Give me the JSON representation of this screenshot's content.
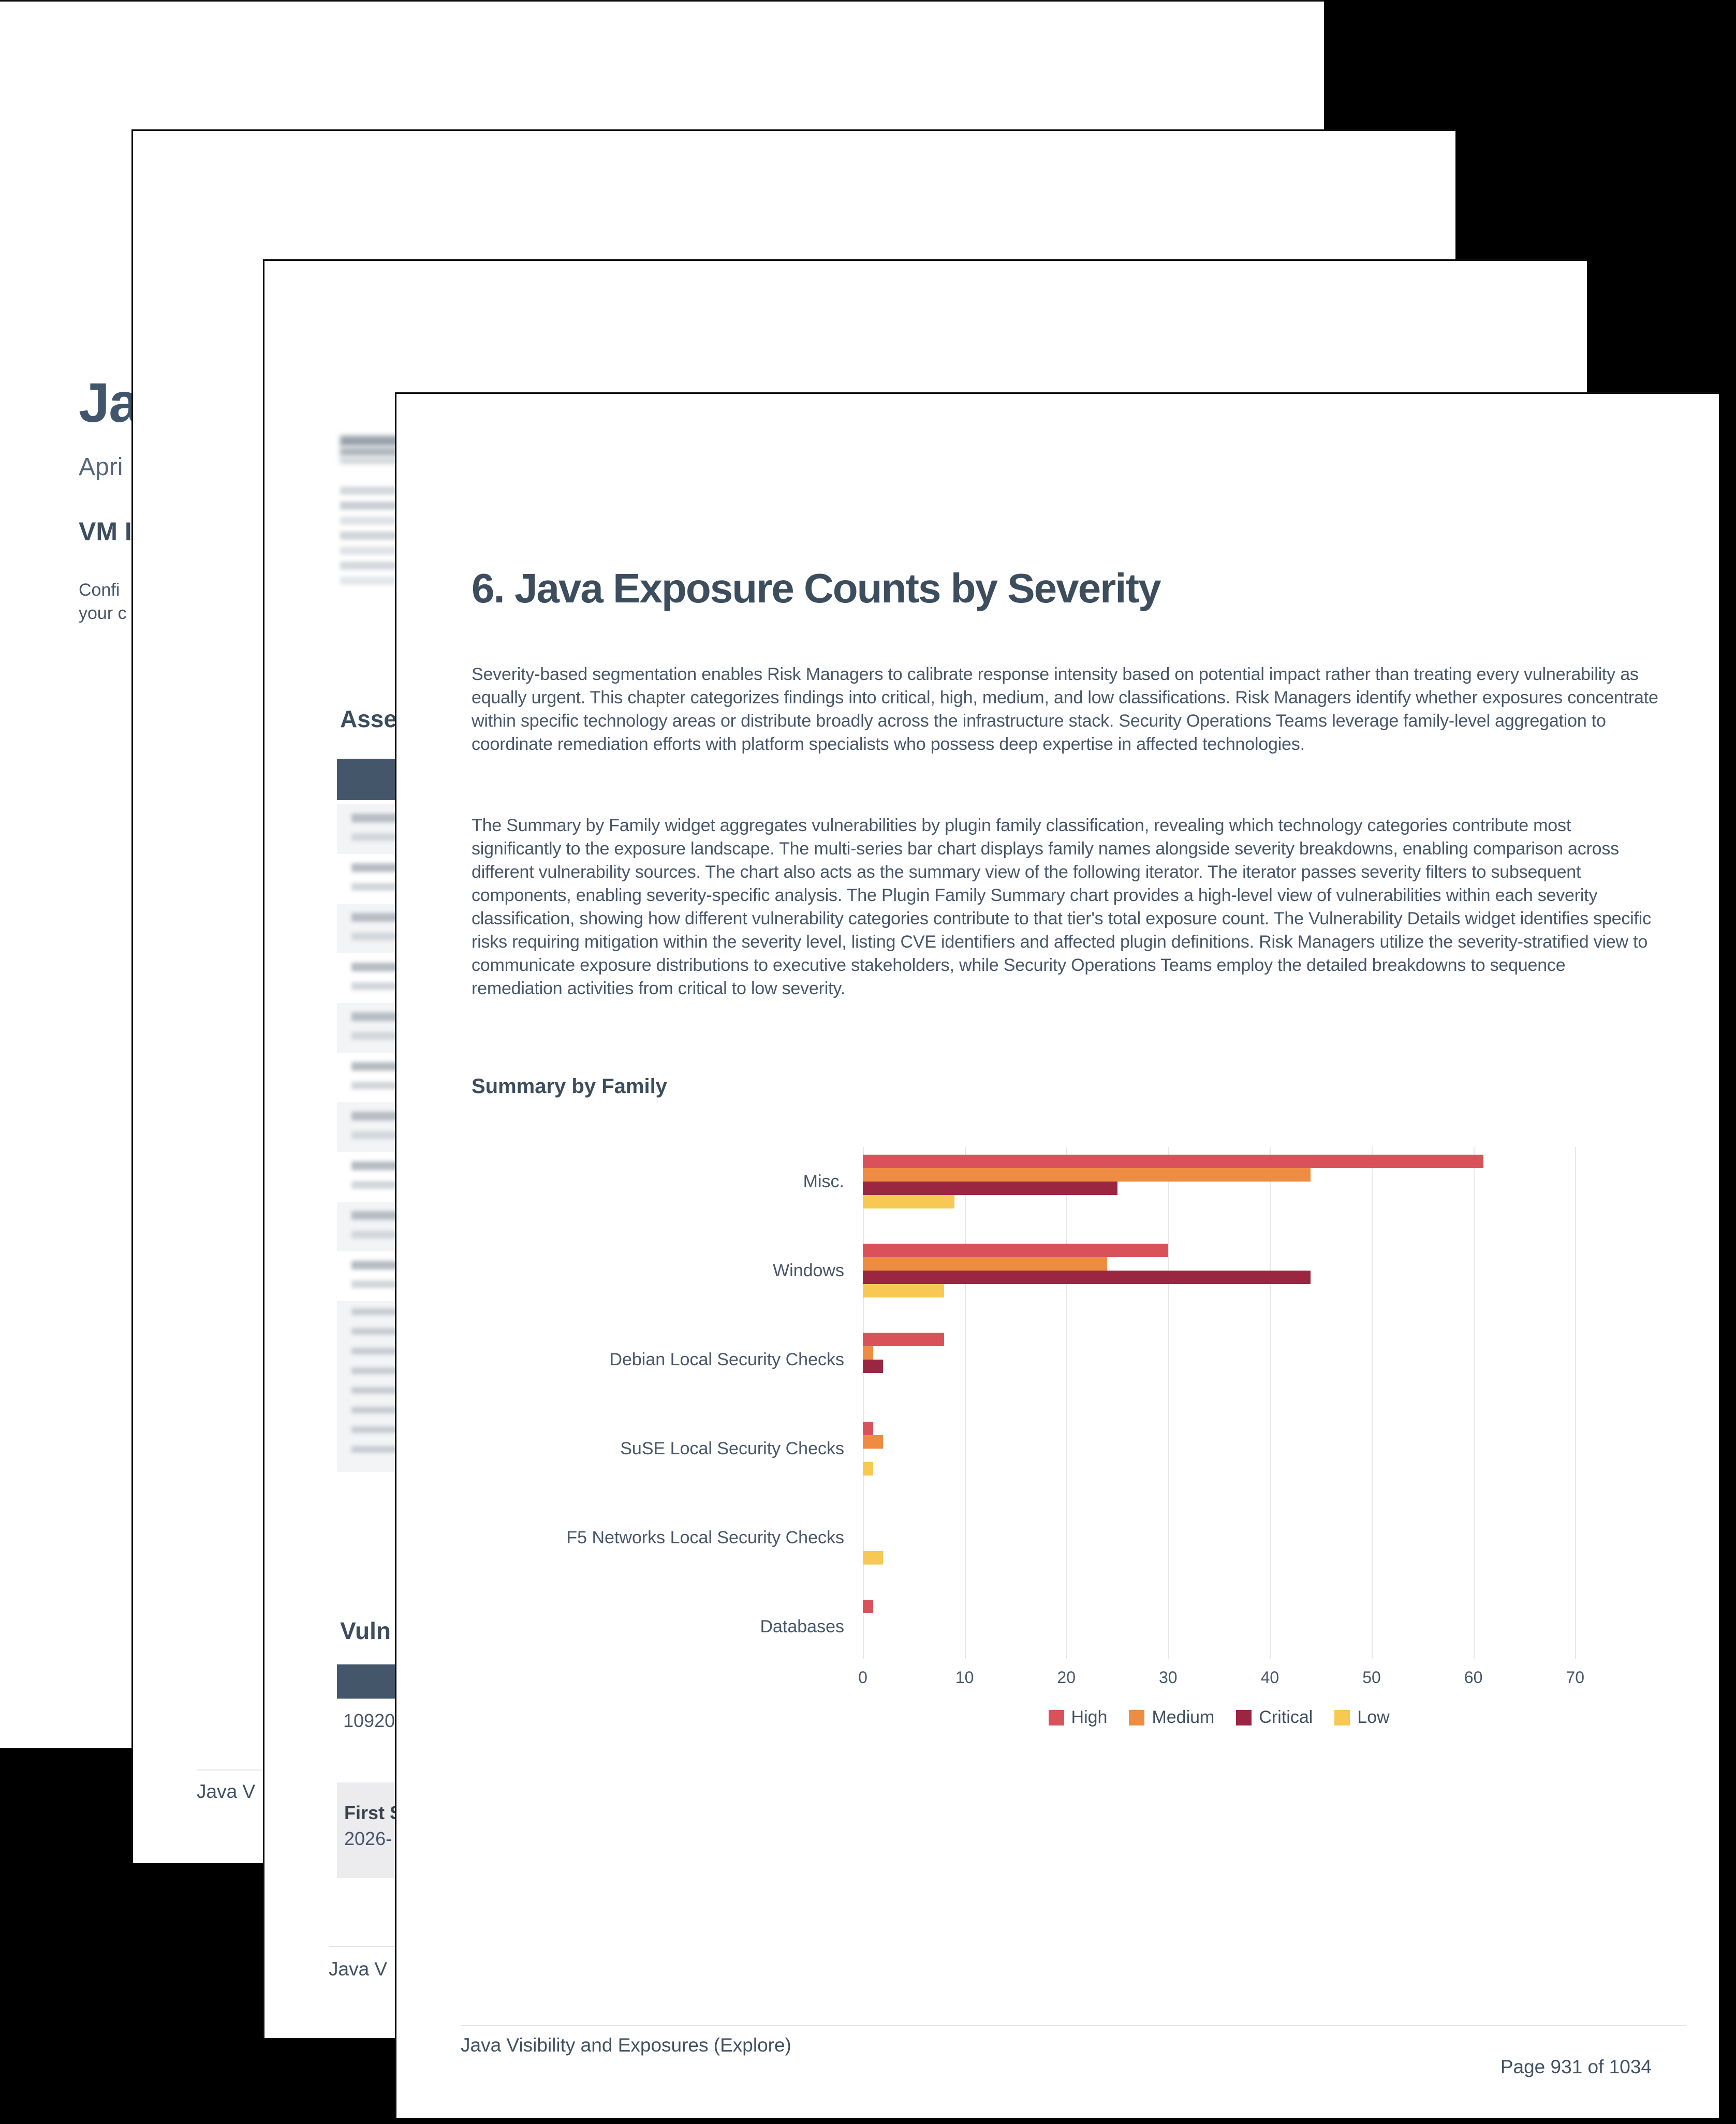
{
  "page1": {
    "title_fragment": "Ja",
    "subtitle_fragment": "Apri",
    "section_fragment": "VM I",
    "body_line1_fragment": "Confi",
    "body_line2_fragment": "your c"
  },
  "page2": {
    "footer_fragment": "Java V"
  },
  "page3": {
    "section1_fragment": "Asse",
    "section2_fragment": "Vuln",
    "table_cell_fragment": "10920",
    "first_seen_label_fragment": "First S",
    "first_seen_value_fragment": "2026-",
    "footer_fragment": "Java V"
  },
  "page4": {
    "heading": "6. Java Exposure Counts by Severity",
    "paragraph1": "Severity-based segmentation enables Risk Managers to calibrate response intensity based on potential impact rather than treating every vulnerability as equally urgent. This chapter categorizes findings into critical, high, medium, and low classifications. Risk Managers identify whether exposures concentrate within specific technology areas or distribute broadly across the infrastructure stack. Security Operations Teams leverage family-level aggregation to coordinate remediation efforts with platform specialists who possess deep expertise in affected technologies.",
    "paragraph2": "The Summary by Family widget aggregates vulnerabilities by plugin family classification, revealing which technology categories contribute most significantly to the exposure landscape. The multi-series bar chart displays family names alongside severity breakdowns, enabling comparison across different vulnerability sources. The chart also acts as the summary view of the following iterator. The iterator passes severity filters to subsequent components, enabling severity-specific analysis. The Plugin Family Summary chart provides a high-level view of vulnerabilities within each severity classification, showing how different vulnerability categories contribute to that tier's total exposure count. The Vulnerability Details widget identifies specific risks requiring mitigation within the severity level, listing CVE identifiers and affected plugin definitions. Risk Managers utilize the severity-stratified view to communicate exposure distributions to executive stakeholders, while Security Operations Teams employ the detailed breakdowns to sequence remediation activities from critical to low severity.",
    "section_heading": "Summary by Family",
    "footer_left": "Java Visibility and Exposures (Explore)",
    "footer_right": "Page 931 of 1034"
  },
  "chart_data": {
    "type": "bar",
    "orientation": "horizontal",
    "title": "Summary by Family",
    "categories": [
      "Misc.",
      "Windows",
      "Debian Local Security Checks",
      "SuSE Local Security Checks",
      "F5 Networks Local Security Checks",
      "Databases"
    ],
    "series": [
      {
        "name": "High",
        "color": "#d9525a",
        "values": [
          61,
          30,
          8,
          1,
          0,
          1
        ]
      },
      {
        "name": "Medium",
        "color": "#ee8c42",
        "values": [
          44,
          24,
          1,
          2,
          0,
          0
        ]
      },
      {
        "name": "Critical",
        "color": "#9b2642",
        "values": [
          25,
          44,
          2,
          0,
          0,
          0
        ]
      },
      {
        "name": "Low",
        "color": "#f7c852",
        "values": [
          9,
          8,
          0,
          1,
          2,
          0
        ]
      }
    ],
    "xlabel": "",
    "ylabel": "",
    "xlim": [
      0,
      70
    ],
    "xticks": [
      0,
      10,
      20,
      30,
      40,
      50,
      60,
      70
    ],
    "grid": true,
    "legend_position": "bottom"
  }
}
